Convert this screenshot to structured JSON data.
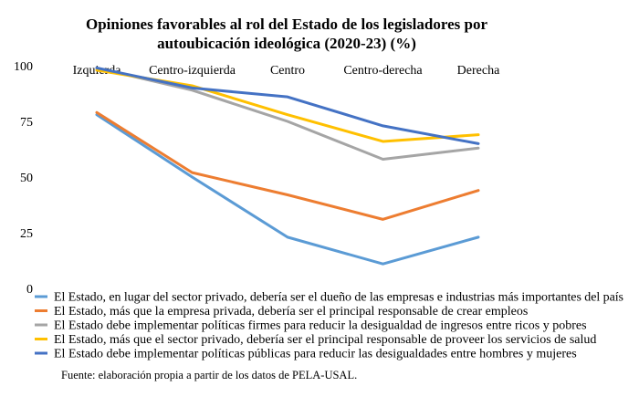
{
  "chart_data": {
    "type": "line",
    "title_line1": "Opiniones favorables al rol del Estado de los legisladores por",
    "title_line2": "autoubicación ideológica (2020-23) (%)",
    "categories": [
      "Izquierda",
      "Centro-izquierda",
      "Centro",
      "Centro-derecha",
      "Derecha"
    ],
    "ylim": [
      0,
      100
    ],
    "yticks": [
      0,
      25,
      50,
      75,
      100
    ],
    "grid": false,
    "legend_position": "bottom",
    "series": [
      {
        "name": "El Estado, en lugar del sector privado, debería ser el dueño de las empresas e industrias más importantes del país",
        "color": "#5B9BD5",
        "values": [
          78,
          50,
          23,
          11,
          23
        ]
      },
      {
        "name": "El Estado, más que la empresa privada, debería ser el principal responsable de crear empleos",
        "color": "#ED7D31",
        "values": [
          79,
          52,
          42,
          31,
          44
        ]
      },
      {
        "name": "El Estado debe implementar políticas firmes para reducir la desigualdad de ingresos entre ricos y pobres",
        "color": "#A5A5A5",
        "values": [
          99,
          89,
          75,
          58,
          63
        ]
      },
      {
        "name": "El Estado, más que el sector privado, debería ser el principal responsable de proveer los servicios de salud",
        "color": "#FFC000",
        "values": [
          98,
          91,
          78,
          66,
          69
        ]
      },
      {
        "name": "El Estado debe implementar políticas públicas para reducir las desigualdades entre hombres y mujeres",
        "color": "#4472C4",
        "values": [
          99,
          90,
          86,
          73,
          65
        ]
      }
    ],
    "source": "Fuente: elaboración propia a partir de los datos de PELA-USAL."
  }
}
